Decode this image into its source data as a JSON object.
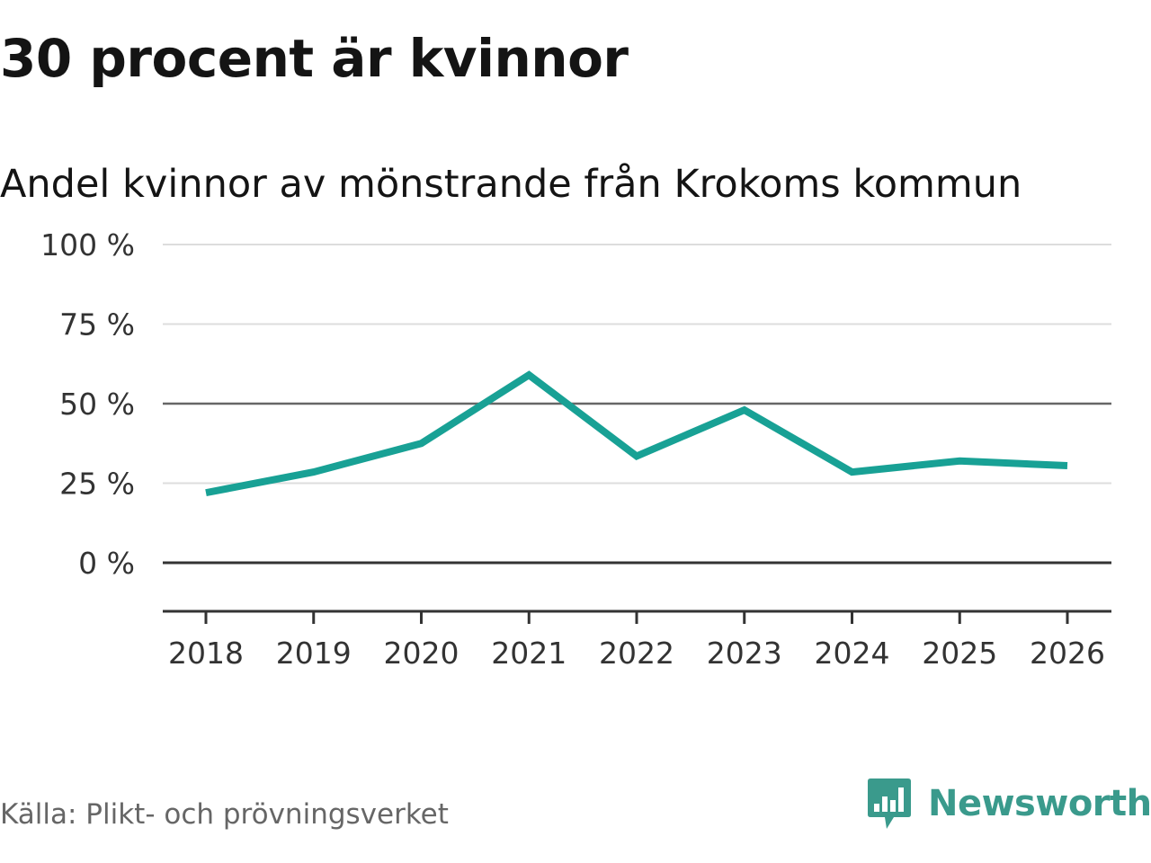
{
  "header": {
    "title": "30 procent är kvinnor",
    "subtitle": "Andel kvinnor av mönstrande från Krokoms kommun"
  },
  "footer": {
    "source": "Källa: Plikt- och prövningsverket",
    "brand": "Newsworthy",
    "brand_icon": "newsworthy-logo-icon"
  },
  "colors": {
    "line": "#18a195",
    "grid": "#dddddd",
    "reference": "#666666",
    "zero": "#333333",
    "axis": "#333333",
    "brand": "#3a9a8c"
  },
  "chart_data": {
    "type": "line",
    "title": "Andel kvinnor av mönstrande från Krokoms kommun",
    "xlabel": "",
    "ylabel": "",
    "categories": [
      "2018",
      "2019",
      "2020",
      "2021",
      "2022",
      "2023",
      "2024",
      "2025",
      "2026"
    ],
    "series": [
      {
        "name": "Andel kvinnor",
        "values": [
          22,
          28.5,
          37.5,
          59,
          33.5,
          48,
          28.5,
          32,
          30.5
        ]
      }
    ],
    "ylim": [
      -15,
      100
    ],
    "yticks": [
      0,
      25,
      50,
      75,
      100
    ],
    "ytick_labels": [
      "0 %",
      "25 %",
      "50 %",
      "75 %",
      "100 %"
    ],
    "reference_lines": [
      0,
      50
    ],
    "grid": true,
    "legend": "none"
  }
}
